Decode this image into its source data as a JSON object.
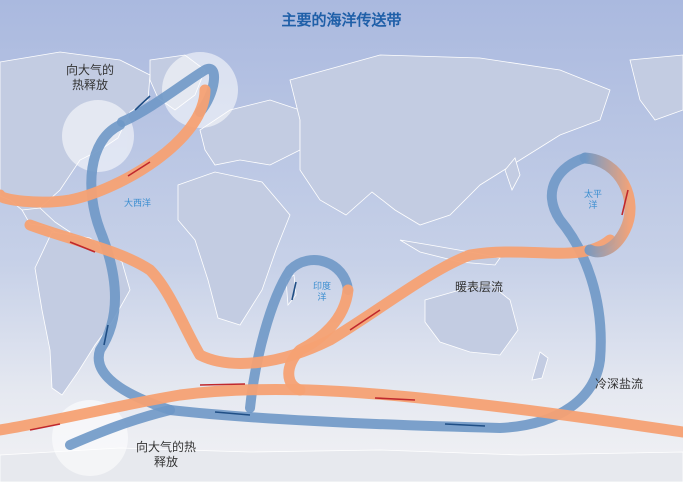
{
  "title": "主要的海洋传送带",
  "labels": {
    "heat_release_north": [
      "向大气的",
      "热释放"
    ],
    "heat_release_south": [
      "向大气的热",
      "释放"
    ],
    "warm_surface_current": "暖表层流",
    "cold_deep_salty_current": "冷深盐流"
  },
  "ocean_names": {
    "atlantic": "大西洋",
    "indian": [
      "印度",
      "洋"
    ],
    "pacific": [
      "太平",
      "洋"
    ]
  },
  "colors": {
    "warm_current": "#f5a173",
    "cold_current": "#6f98c6",
    "arrow_warm": "#c0282d",
    "arrow_cold": "#1f4e85",
    "land": "#c3cce2",
    "ocean_top": "#aab9df",
    "title": "#1f5fa8"
  }
}
